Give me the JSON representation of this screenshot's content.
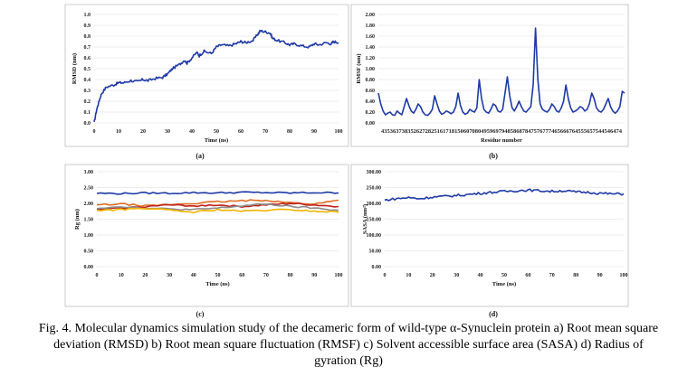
{
  "caption": "Fig. 4. Molecular dynamics simulation study of the decameric form of wild-type α-Synuclein protein a) Root mean square deviation (RMSD) b) Root mean square fluctuation (RMSF) c) Solvent accessible surface area (SASA) d) Radius of gyration (Rg)",
  "chart_data": [
    {
      "panel_label": "(a)",
      "type": "line",
      "xlabel": "Time (ns)",
      "ylabel": "RMSD (nm)",
      "xlim": [
        0,
        100
      ],
      "ylim": [
        0,
        1.0
      ],
      "xticks": [
        "0",
        "10",
        "20",
        "30",
        "40",
        "50",
        "60",
        "70",
        "80",
        "90",
        "100"
      ],
      "yticks": [
        "0.0",
        "0.1",
        "0.2",
        "0.3",
        "0.4",
        "0.5",
        "0.6",
        "0.7",
        "0.8",
        "0.9",
        "1.0"
      ],
      "grid": true,
      "series": [
        {
          "color": "#1f3aa6",
          "x": [
            0,
            1,
            2,
            3,
            5,
            8,
            10,
            12,
            15,
            18,
            20,
            22,
            25,
            28,
            30,
            32,
            35,
            37,
            38,
            40,
            42,
            43,
            45,
            48,
            50,
            52,
            55,
            58,
            60,
            62,
            65,
            67,
            68,
            70,
            72,
            73,
            75,
            78,
            80,
            82,
            85,
            88,
            90,
            92,
            95,
            97,
            98,
            100
          ],
          "y": [
            0.0,
            0.12,
            0.2,
            0.27,
            0.33,
            0.35,
            0.37,
            0.37,
            0.39,
            0.38,
            0.4,
            0.39,
            0.41,
            0.42,
            0.45,
            0.5,
            0.54,
            0.58,
            0.55,
            0.6,
            0.65,
            0.62,
            0.66,
            0.64,
            0.7,
            0.72,
            0.71,
            0.73,
            0.75,
            0.74,
            0.76,
            0.82,
            0.85,
            0.84,
            0.83,
            0.78,
            0.76,
            0.74,
            0.72,
            0.73,
            0.71,
            0.7,
            0.73,
            0.72,
            0.74,
            0.73,
            0.75,
            0.74
          ]
        }
      ]
    },
    {
      "panel_label": "(b)",
      "type": "line",
      "xlabel": "Residue number",
      "ylabel": "RMSF (nm)",
      "ylim": [
        0,
        2.0
      ],
      "yticks": [
        "0.00",
        "0.20",
        "0.40",
        "0.60",
        "0.80",
        "1.00",
        "1.20",
        "1.40",
        "1.60",
        "1.80",
        "2.00"
      ],
      "xtick_text": "4353637383526272825161718150607080495969794858687847576777465666764555657544546474",
      "grid": true,
      "series": [
        {
          "color": "#1f3aa6",
          "y": [
            0.55,
            0.35,
            0.22,
            0.15,
            0.18,
            0.2,
            0.15,
            0.14,
            0.22,
            0.18,
            0.15,
            0.3,
            0.45,
            0.32,
            0.22,
            0.18,
            0.25,
            0.35,
            0.3,
            0.2,
            0.15,
            0.14,
            0.18,
            0.25,
            0.5,
            0.35,
            0.22,
            0.16,
            0.18,
            0.22,
            0.2,
            0.17,
            0.2,
            0.3,
            0.55,
            0.32,
            0.2,
            0.16,
            0.18,
            0.25,
            0.22,
            0.2,
            0.28,
            0.8,
            0.45,
            0.25,
            0.2,
            0.18,
            0.25,
            0.35,
            0.32,
            0.22,
            0.2,
            0.25,
            0.55,
            0.85,
            0.5,
            0.28,
            0.22,
            0.3,
            0.4,
            0.3,
            0.22,
            0.2,
            0.25,
            0.3,
            0.7,
            1.75,
            0.8,
            0.35,
            0.25,
            0.22,
            0.2,
            0.25,
            0.35,
            0.3,
            0.22,
            0.2,
            0.28,
            0.4,
            0.7,
            0.45,
            0.28,
            0.2,
            0.22,
            0.25,
            0.3,
            0.28,
            0.22,
            0.25,
            0.35,
            0.55,
            0.45,
            0.28,
            0.22,
            0.2,
            0.25,
            0.35,
            0.45,
            0.3,
            0.22,
            0.18,
            0.22,
            0.3,
            0.58,
            0.55
          ]
        }
      ]
    },
    {
      "panel_label": "(c)",
      "type": "line",
      "xlabel": "Time (ns)",
      "ylabel": "Rg (nm)",
      "xlim": [
        0,
        100
      ],
      "ylim": [
        0,
        3.0
      ],
      "xticks": [
        "0",
        "10",
        "20",
        "30",
        "40",
        "50",
        "60",
        "70",
        "80",
        "90",
        "100"
      ],
      "yticks": [
        "0.00",
        "0.50",
        "1.00",
        "1.50",
        "2.00",
        "2.50",
        "3.00"
      ],
      "grid": true,
      "series": [
        {
          "color": "#1f3aa6",
          "x": [
            0,
            10,
            20,
            30,
            40,
            50,
            60,
            70,
            80,
            90,
            100
          ],
          "y": [
            2.32,
            2.31,
            2.33,
            2.32,
            2.34,
            2.33,
            2.35,
            2.34,
            2.33,
            2.34,
            2.33
          ]
        },
        {
          "color": "#e06e22",
          "x": [
            0,
            10,
            20,
            30,
            40,
            50,
            60,
            70,
            80,
            90,
            100
          ],
          "y": [
            1.95,
            1.98,
            1.92,
            1.96,
            2.0,
            2.05,
            2.08,
            2.1,
            2.02,
            1.98,
            2.1
          ]
        },
        {
          "color": "#c0231b",
          "x": [
            0,
            10,
            20,
            30,
            40,
            50,
            60,
            70,
            80,
            90,
            100
          ],
          "y": [
            1.8,
            1.85,
            1.9,
            1.95,
            1.92,
            1.95,
            1.9,
            1.95,
            2.0,
            1.95,
            1.9
          ]
        },
        {
          "color": "#8c8c8c",
          "x": [
            0,
            10,
            20,
            30,
            40,
            50,
            60,
            70,
            80,
            90,
            100
          ],
          "y": [
            1.85,
            1.9,
            1.85,
            1.82,
            1.8,
            1.85,
            1.92,
            1.98,
            1.9,
            1.85,
            1.78
          ]
        },
        {
          "color": "#f2b400",
          "x": [
            0,
            10,
            20,
            30,
            40,
            50,
            60,
            70,
            80,
            90,
            100
          ],
          "y": [
            1.78,
            1.8,
            1.85,
            1.78,
            1.72,
            1.8,
            1.75,
            1.78,
            1.8,
            1.75,
            1.72
          ]
        }
      ]
    },
    {
      "panel_label": "(d)",
      "type": "line",
      "xlabel": "Time (ns)",
      "ylabel": "SASA (nm²)",
      "xlim": [
        0,
        100
      ],
      "ylim": [
        0,
        300
      ],
      "xticks": [
        "0",
        "10",
        "20",
        "30",
        "40",
        "50",
        "60",
        "70",
        "80",
        "90",
        "100"
      ],
      "yticks": [
        "0.00",
        "50.00",
        "100.00",
        "150.00",
        "200.00",
        "250.00",
        "300.00"
      ],
      "grid": true,
      "series": [
        {
          "color": "#1f3aa6",
          "x": [
            0,
            5,
            10,
            15,
            20,
            25,
            30,
            35,
            40,
            45,
            50,
            55,
            60,
            65,
            70,
            75,
            80,
            85,
            90,
            95,
            100
          ],
          "y": [
            210,
            215,
            218,
            215,
            220,
            222,
            225,
            228,
            232,
            235,
            238,
            240,
            242,
            240,
            238,
            240,
            236,
            235,
            232,
            230,
            230
          ]
        }
      ]
    }
  ]
}
